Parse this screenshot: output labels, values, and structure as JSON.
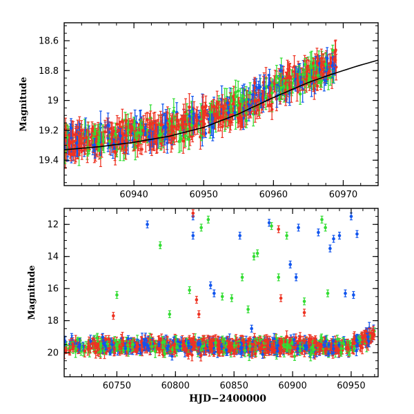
{
  "chart_data": [
    {
      "type": "scatter",
      "panel": "top",
      "ylabel": "Magnitude",
      "xlabel": "",
      "xlim": [
        60930,
        60975
      ],
      "ylim": [
        19.57,
        18.48
      ],
      "y_inverted": true,
      "xticks": [
        60940,
        60950,
        60960,
        60970
      ],
      "yticks": [
        18.6,
        18.8,
        19,
        19.2,
        19.4
      ],
      "ytick_labels": [
        "18.6",
        "18.8",
        "19",
        "19.2",
        "19.4"
      ],
      "xtick_labels": [
        "60940",
        "60950",
        "60960",
        "60970"
      ],
      "series_colors": {
        "red": "#ee3322",
        "green": "#33dd33",
        "blue": "#1155ee",
        "model": "#000000"
      },
      "model_curve": {
        "x": [
          60930,
          60935,
          60940,
          60945,
          60950,
          60955,
          60960,
          60965,
          60968,
          60970,
          60972,
          60975
        ],
        "y": [
          19.33,
          19.31,
          19.28,
          19.24,
          19.18,
          19.09,
          18.98,
          18.88,
          18.83,
          18.8,
          18.77,
          18.73
        ]
      },
      "grid": false,
      "legend": "none"
    },
    {
      "type": "scatter",
      "panel": "bottom",
      "ylabel": "Magnitude",
      "xlabel": "HJD−2400000",
      "xlim": [
        60705,
        60973
      ],
      "ylim": [
        21.5,
        11.0
      ],
      "y_inverted": true,
      "xticks": [
        60750,
        60800,
        60850,
        60900,
        60950
      ],
      "yticks": [
        12,
        14,
        16,
        18,
        20
      ],
      "xtick_labels": [
        "60750",
        "60800",
        "60850",
        "60900",
        "60950"
      ],
      "ytick_labels": [
        "12",
        "14",
        "16",
        "18",
        "20"
      ],
      "outliers": {
        "blue": [
          [
            60776,
            12.0
          ],
          [
            60815,
            11.5
          ],
          [
            60815,
            12.7
          ],
          [
            60830,
            15.8
          ],
          [
            60833,
            16.3
          ],
          [
            60855,
            12.7
          ],
          [
            60865,
            18.5
          ],
          [
            60880,
            11.9
          ],
          [
            60898,
            14.5
          ],
          [
            60903,
            15.3
          ],
          [
            60905,
            12.2
          ],
          [
            60922,
            12.5
          ],
          [
            60932,
            13.5
          ],
          [
            60935,
            12.9
          ],
          [
            60940,
            12.7
          ],
          [
            60945,
            16.3
          ],
          [
            60950,
            11.5
          ],
          [
            60952,
            16.4
          ],
          [
            60955,
            12.6
          ]
        ],
        "green": [
          [
            60750,
            16.4
          ],
          [
            60787,
            13.3
          ],
          [
            60795,
            17.6
          ],
          [
            60812,
            16.1
          ],
          [
            60822,
            12.2
          ],
          [
            60828,
            11.7
          ],
          [
            60840,
            16.5
          ],
          [
            60848,
            16.6
          ],
          [
            60857,
            15.3
          ],
          [
            60862,
            17.3
          ],
          [
            60867,
            14.0
          ],
          [
            60870,
            13.8
          ],
          [
            60882,
            12.1
          ],
          [
            60888,
            15.3
          ],
          [
            60895,
            12.7
          ],
          [
            60910,
            16.8
          ],
          [
            60925,
            11.7
          ],
          [
            60928,
            12.2
          ],
          [
            60930,
            16.3
          ]
        ],
        "red": [
          [
            60747,
            17.7
          ],
          [
            60815,
            11.3
          ],
          [
            60818,
            16.7
          ],
          [
            60820,
            17.6
          ],
          [
            60888,
            12.3
          ],
          [
            60890,
            16.6
          ],
          [
            60910,
            17.5
          ]
        ]
      },
      "bulk_level": 19.6,
      "bulk_spread": 1.6,
      "grid": false,
      "legend": "none"
    }
  ]
}
